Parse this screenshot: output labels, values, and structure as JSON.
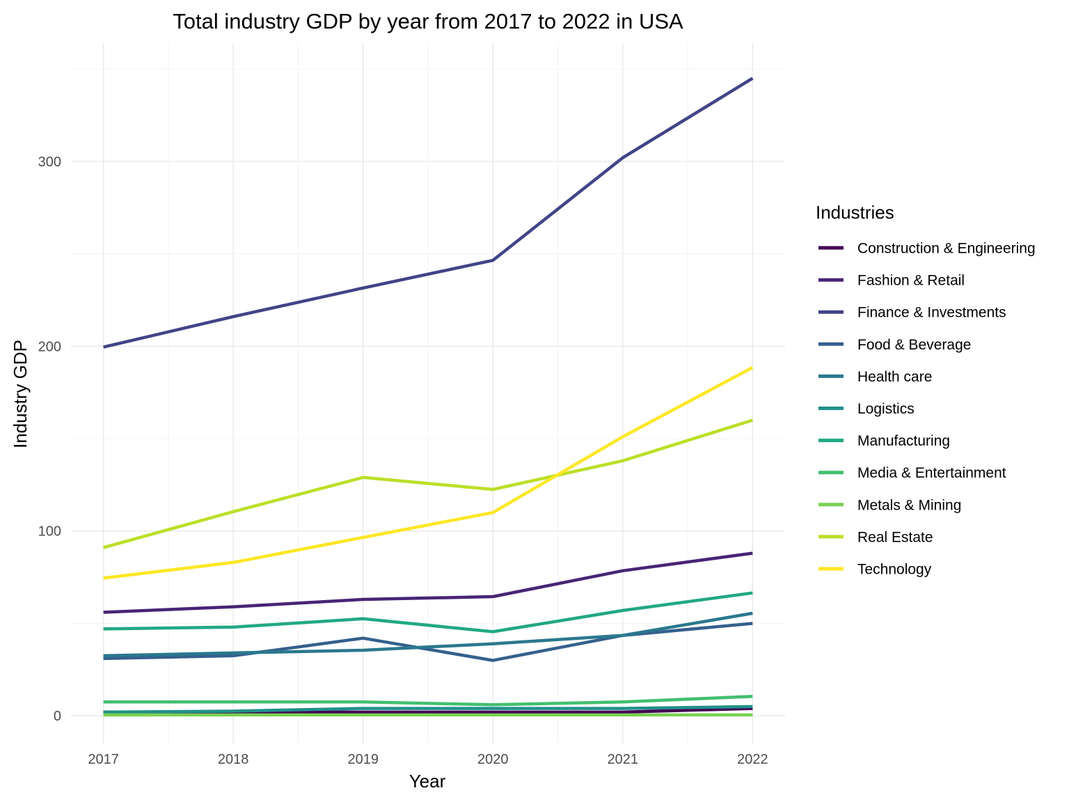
{
  "chart_data": {
    "type": "line",
    "title": "Total industry GDP by year from 2017 to 2022 in USA",
    "xlabel": "Year",
    "ylabel": "Industry GDP",
    "x": [
      2017,
      2018,
      2019,
      2020,
      2021,
      2022
    ],
    "x_tick_labels": [
      "2017",
      "2018",
      "2019",
      "2020",
      "2021",
      "2022"
    ],
    "y_ticks": [
      0,
      100,
      200,
      300
    ],
    "y_tick_labels": [
      "0",
      "100",
      "200",
      "300"
    ],
    "xlim": [
      2016.75,
      2022.25
    ],
    "ylim": [
      -15,
      364
    ],
    "grid": true,
    "legend_title": "Industries",
    "legend_position": "right",
    "series": [
      {
        "name": "Construction & Engineering",
        "color": "#440154",
        "values": [
          2,
          2,
          2,
          2,
          2,
          4
        ]
      },
      {
        "name": "Fashion & Retail",
        "color": "#482576",
        "values": [
          56,
          59,
          63,
          64.5,
          78.5,
          88
        ]
      },
      {
        "name": "Finance & Investments",
        "color": "#414487",
        "values": [
          199.5,
          216,
          231.5,
          246.5,
          302,
          345
        ]
      },
      {
        "name": "Food & Beverage",
        "color": "#35608D",
        "values": [
          31,
          32.5,
          42,
          30,
          43.5,
          50
        ]
      },
      {
        "name": "Health care",
        "color": "#2A788E",
        "values": [
          32.5,
          34,
          35.5,
          39,
          43.5,
          55.5
        ]
      },
      {
        "name": "Logistics",
        "color": "#21908C",
        "values": [
          2,
          2.5,
          4,
          4,
          4,
          5
        ]
      },
      {
        "name": "Manufacturing",
        "color": "#22A884",
        "values": [
          47,
          48,
          52.5,
          45.5,
          57,
          66.5
        ]
      },
      {
        "name": "Media & Entertainment",
        "color": "#43BF71",
        "values": [
          7.5,
          7.5,
          7.5,
          6,
          7.5,
          10.5
        ]
      },
      {
        "name": "Metals & Mining",
        "color": "#7AD151",
        "values": [
          0.5,
          0.5,
          0.5,
          0.5,
          0.5,
          0.5
        ]
      },
      {
        "name": "Real Estate",
        "color": "#BBDF27",
        "values": [
          91,
          110.5,
          129,
          122.5,
          138,
          160
        ]
      },
      {
        "name": "Technology",
        "color": "#FDE725",
        "values": [
          74.5,
          83,
          96.5,
          110,
          151,
          188.5
        ]
      }
    ]
  }
}
